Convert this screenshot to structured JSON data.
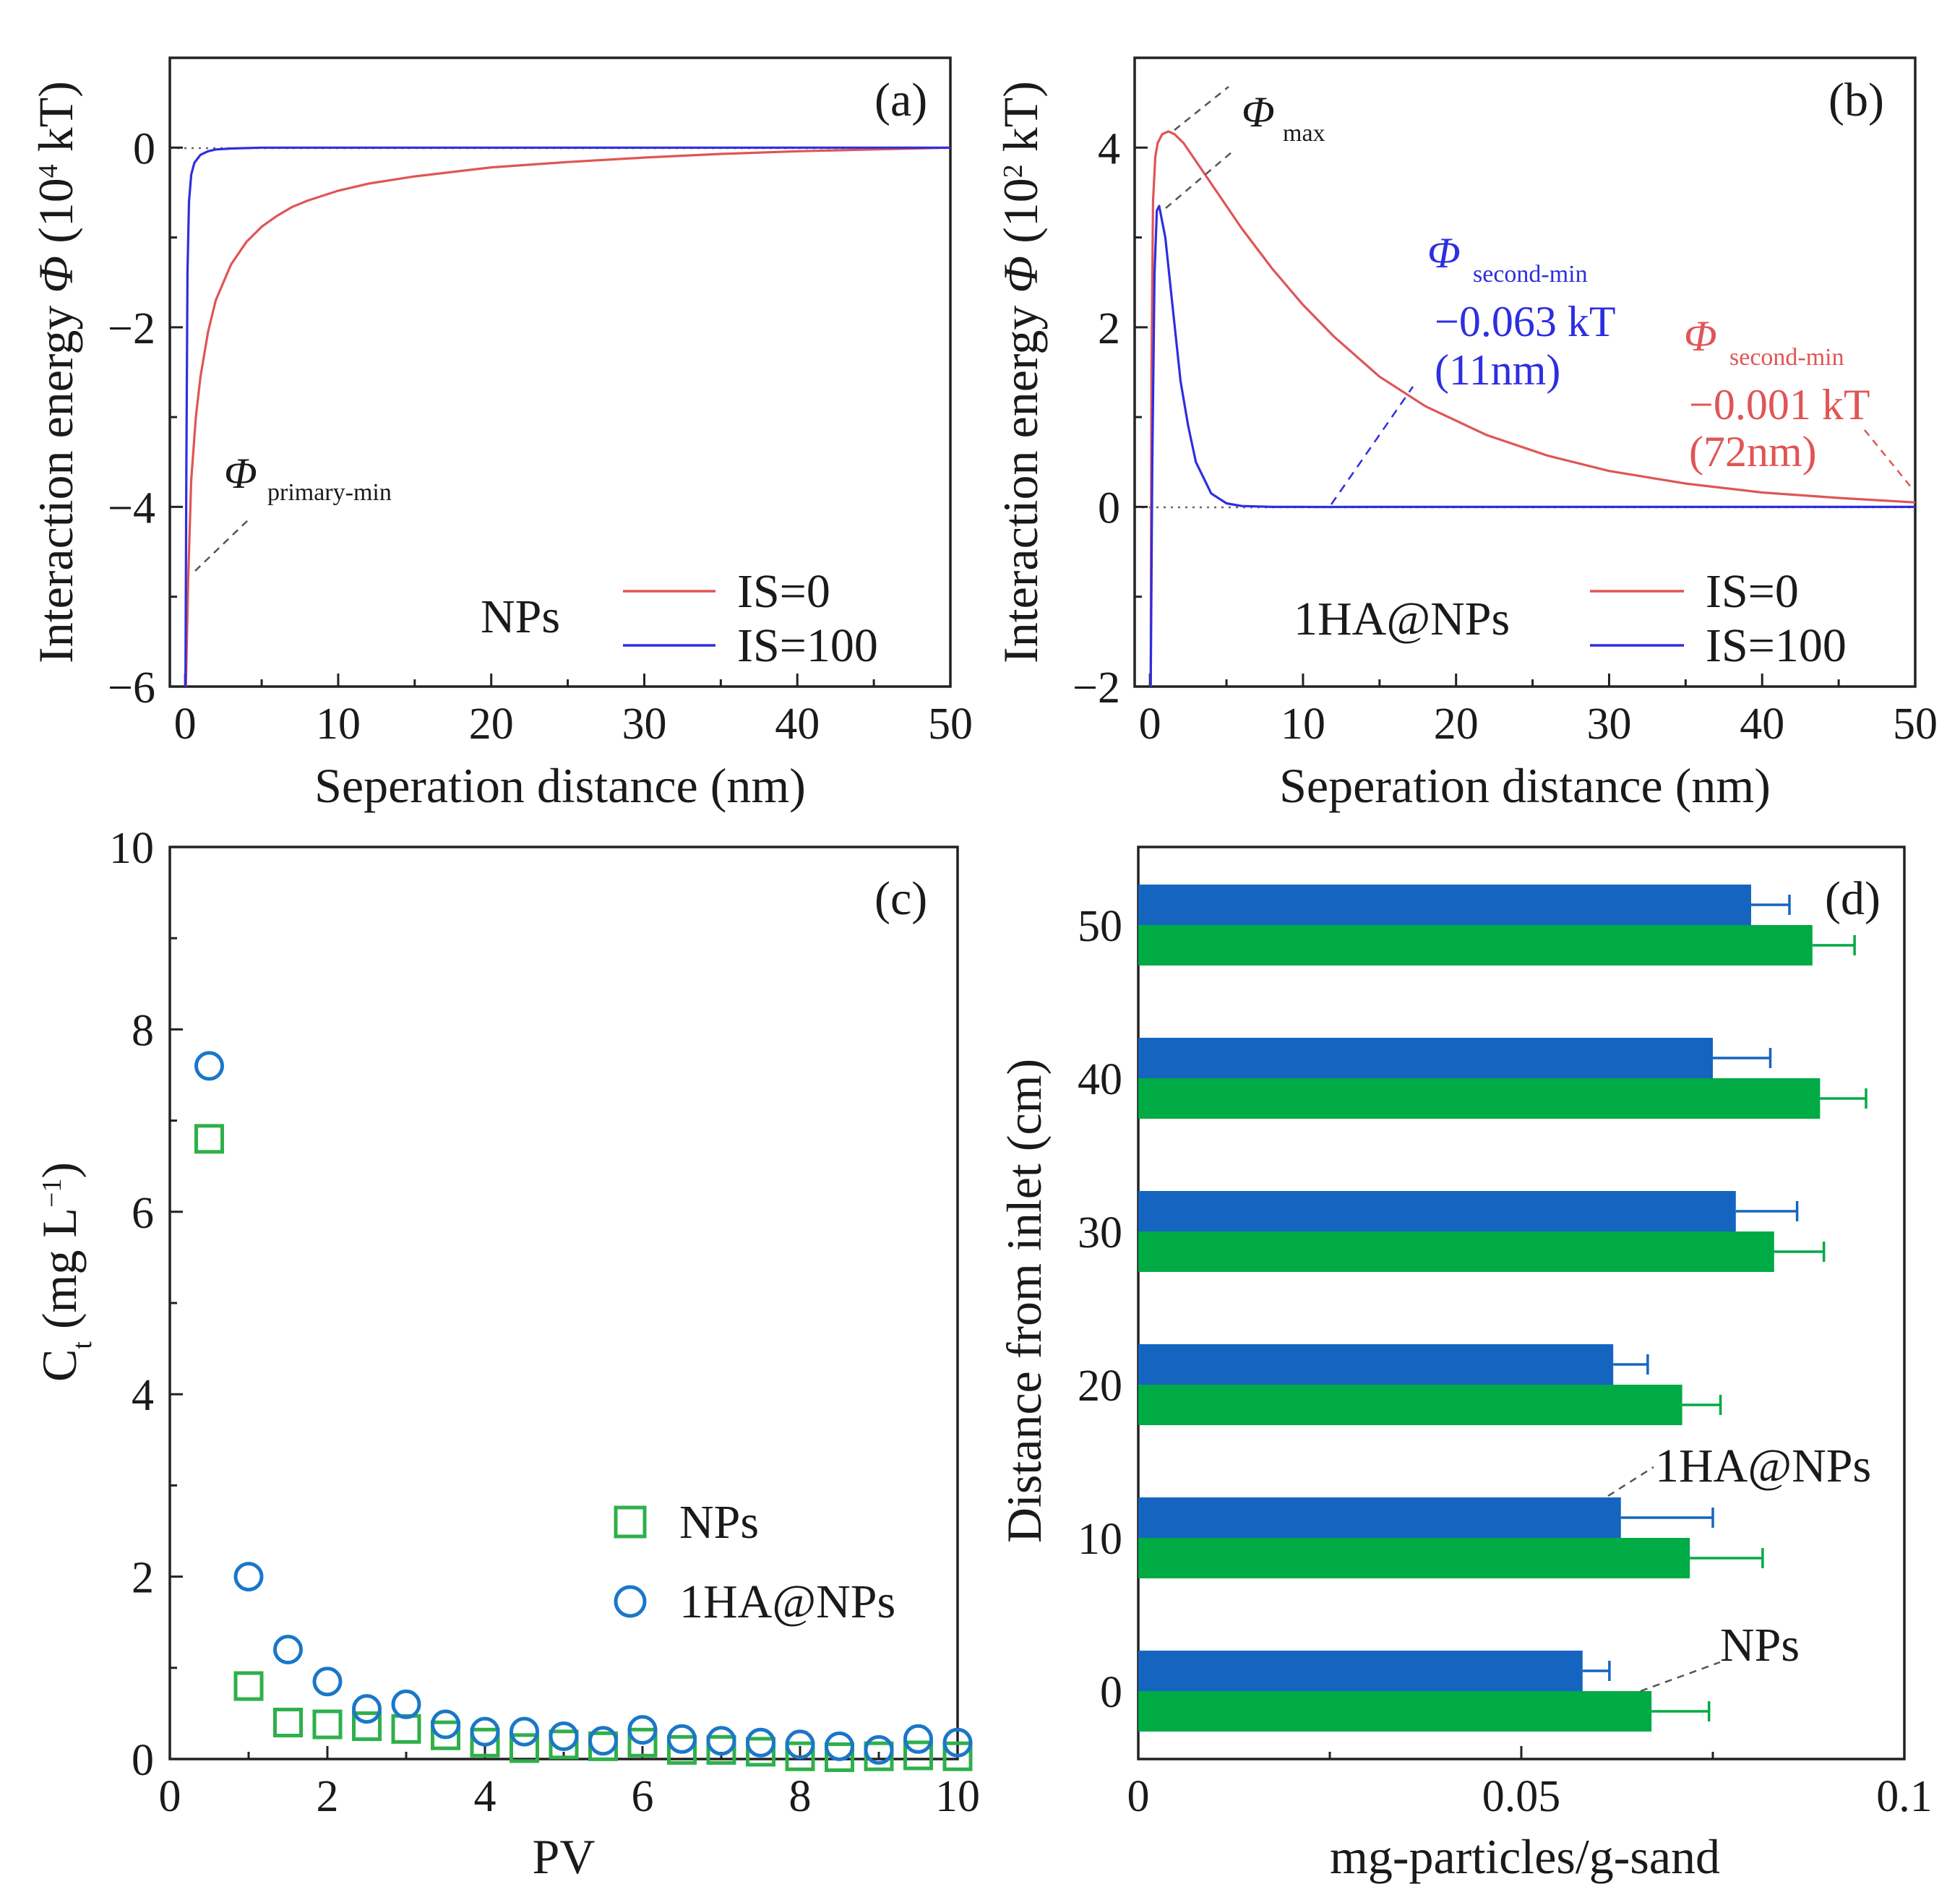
{
  "colors": {
    "red": "#e05555",
    "blue": "#2e2ee0",
    "bar_blue": "#1565c0",
    "bar_green": "#00aa44",
    "marker_blue": "#1a77c8",
    "marker_green": "#2eb04a",
    "dotted": "#666666"
  },
  "chart_data": [
    {
      "panel": "(a)",
      "type": "line",
      "xlabel": "Seperation distance (nm)",
      "ylabel": "Interaction energy Φ (10⁴ kT)",
      "xlim": [
        -1,
        50
      ],
      "ylim": [
        -6,
        1
      ],
      "xticks": [
        "0",
        "10",
        "20",
        "30",
        "40",
        "50"
      ],
      "yticks": [
        "0",
        "−2",
        "−4",
        "−6"
      ],
      "legend_title": "NPs",
      "series": [
        {
          "name": "IS=0",
          "color": "red",
          "x": [
            0.05,
            0.2,
            0.4,
            0.7,
            1,
            1.5,
            2,
            3,
            4,
            5,
            6,
            7,
            8,
            10,
            12,
            15,
            20,
            25,
            30,
            35,
            40,
            45,
            50
          ],
          "y": [
            -6,
            -4.8,
            -3.7,
            -3.0,
            -2.55,
            -2.05,
            -1.7,
            -1.3,
            -1.05,
            -0.88,
            -0.76,
            -0.66,
            -0.59,
            -0.48,
            -0.4,
            -0.32,
            -0.22,
            -0.16,
            -0.11,
            -0.07,
            -0.04,
            -0.02,
            0
          ]
        },
        {
          "name": "IS=100",
          "color": "blue",
          "x": [
            0.02,
            0.08,
            0.15,
            0.25,
            0.4,
            0.6,
            1,
            1.5,
            2,
            3,
            5,
            10,
            20,
            30,
            40,
            50
          ],
          "y": [
            -6,
            -3.5,
            -1.4,
            -0.6,
            -0.3,
            -0.17,
            -0.08,
            -0.04,
            -0.02,
            -0.01,
            0,
            0,
            0,
            0,
            0,
            0
          ]
        }
      ],
      "annotations": {
        "primary_min": "primary-min"
      }
    },
    {
      "panel": "(b)",
      "type": "line",
      "xlabel": "Seperation distance (nm)",
      "ylabel": "Interaction energy Φ (10² kT)",
      "xlim": [
        -1,
        50
      ],
      "ylim": [
        -2,
        5
      ],
      "xticks": [
        "0",
        "10",
        "20",
        "30",
        "40",
        "50"
      ],
      "yticks": [
        "4",
        "2",
        "0",
        "−2"
      ],
      "legend_title": "1HA@NPs",
      "series": [
        {
          "name": "IS=0",
          "color": "red",
          "x": [
            0.05,
            0.1,
            0.2,
            0.35,
            0.5,
            0.8,
            1.2,
            1.6,
            2.2,
            3,
            4,
            5,
            6,
            8,
            10,
            12,
            15,
            18,
            22,
            26,
            30,
            35,
            40,
            45,
            50
          ],
          "y": [
            -2,
            1.5,
            3.4,
            3.9,
            4.05,
            4.15,
            4.18,
            4.15,
            4.05,
            3.85,
            3.6,
            3.35,
            3.1,
            2.65,
            2.25,
            1.9,
            1.45,
            1.12,
            0.8,
            0.57,
            0.4,
            0.26,
            0.16,
            0.1,
            0.05
          ]
        },
        {
          "name": "IS=100",
          "color": "blue",
          "x": [
            0.05,
            0.15,
            0.3,
            0.45,
            0.6,
            1,
            1.5,
            2,
            2.5,
            3,
            4,
            5,
            6,
            8,
            10,
            11,
            15,
            20,
            30,
            40,
            50
          ],
          "y": [
            -2,
            0.5,
            2.6,
            3.3,
            3.35,
            3.0,
            2.2,
            1.4,
            0.9,
            0.5,
            0.15,
            0.04,
            0.01,
            0,
            0,
            -0.0006,
            0,
            0,
            0,
            0,
            0
          ]
        }
      ],
      "annotations": {
        "max": "max",
        "blue_second_min": "second-min",
        "blue_value": "−0.063 kT",
        "blue_dist": "(11nm)",
        "red_second_min": "second-min",
        "red_value": "−0.001 kT",
        "red_dist": "(72nm)"
      }
    },
    {
      "panel": "(c)",
      "type": "scatter",
      "xlabel": "PV",
      "ylabel": "C",
      "ylabel_sub": "t",
      "ylabel_tail": " (mg L",
      "ylabel_sup": "−1",
      "ylabel_close": ")",
      "xlim": [
        0,
        10
      ],
      "ylim": [
        0,
        10
      ],
      "xticks": [
        "0",
        "2",
        "4",
        "6",
        "8",
        "10"
      ],
      "yticks": [
        "0",
        "2",
        "4",
        "6",
        "8",
        "10"
      ],
      "series": [
        {
          "name": "NPs",
          "marker": "square",
          "color": "marker_green",
          "x": [
            0.5,
            1,
            1.5,
            2,
            2.5,
            3,
            3.5,
            4,
            4.5,
            5,
            5.5,
            6,
            6.5,
            7,
            7.5,
            8,
            8.5,
            9,
            9.5,
            10
          ],
          "y": [
            6.8,
            0.8,
            0.4,
            0.38,
            0.36,
            0.33,
            0.26,
            0.18,
            0.12,
            0.16,
            0.14,
            0.18,
            0.1,
            0.1,
            0.08,
            0.03,
            0.02,
            0.03,
            0.04,
            0.03
          ]
        },
        {
          "name": "1HA@NPs",
          "marker": "circle",
          "color": "marker_blue",
          "x": [
            0.5,
            1,
            1.5,
            2,
            2.5,
            3,
            3.5,
            4,
            4.5,
            5,
            5.5,
            6,
            6.5,
            7,
            7.5,
            8,
            8.5,
            9,
            9.5,
            10
          ],
          "y": [
            7.6,
            2.0,
            1.2,
            0.85,
            0.55,
            0.6,
            0.38,
            0.3,
            0.3,
            0.25,
            0.2,
            0.32,
            0.22,
            0.2,
            0.18,
            0.16,
            0.14,
            0.1,
            0.22,
            0.18
          ]
        }
      ]
    },
    {
      "panel": "(d)",
      "type": "bar",
      "orientation": "horizontal",
      "xlabel": "mg-particles/g-sand",
      "ylabel": "Distance from inlet (cm)",
      "xlim": [
        0,
        0.1
      ],
      "xticks": [
        "0",
        "0.05",
        "0.1"
      ],
      "categories": [
        "0",
        "10",
        "20",
        "30",
        "40",
        "50"
      ],
      "series": [
        {
          "name": "1HA@NPs",
          "color": "bar_blue",
          "values": [
            0.058,
            0.063,
            0.062,
            0.078,
            0.075,
            0.08
          ],
          "errors": [
            0.0035,
            0.012,
            0.0045,
            0.008,
            0.0075,
            0.005
          ]
        },
        {
          "name": "NPs",
          "color": "bar_green",
          "values": [
            0.067,
            0.072,
            0.071,
            0.083,
            0.089,
            0.088
          ],
          "errors": [
            0.0075,
            0.0095,
            0.005,
            0.0065,
            0.006,
            0.0055
          ]
        }
      ],
      "labels": {
        "ha": "1HA@NPs",
        "np": "NPs"
      }
    }
  ]
}
